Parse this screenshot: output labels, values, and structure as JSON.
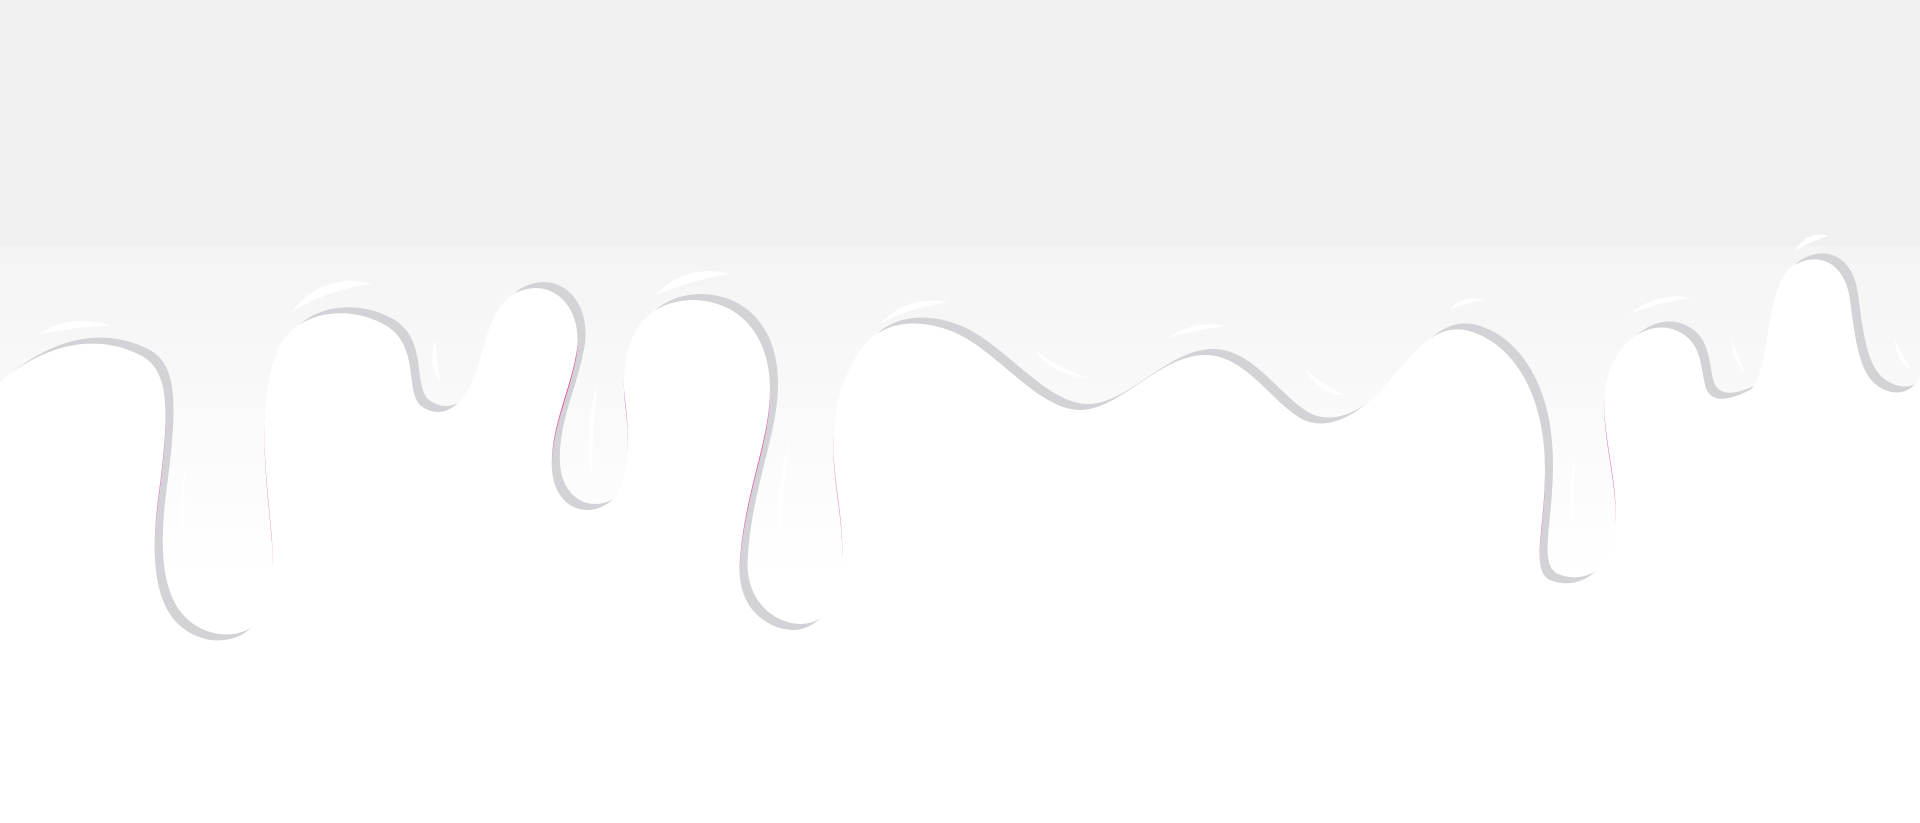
{
  "scene": {
    "description_kind": "dripping-liquid-illustration",
    "colors": {
      "background_top": "#f0f0f0",
      "background_band": "#f4f4f4",
      "liquid": "#ffffff",
      "shadow": "#d3d2d6",
      "outline": "#e0509e",
      "highlight": "#ffffff"
    }
  }
}
